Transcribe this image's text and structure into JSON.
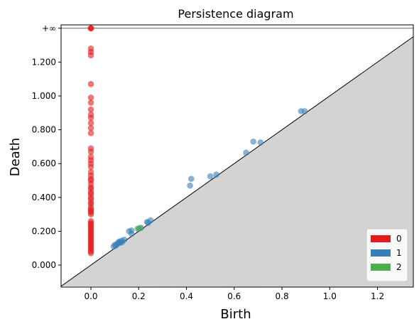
{
  "chart_data": {
    "type": "scatter",
    "title": "Persistence diagram",
    "xlabel": "Birth",
    "ylabel": "Death",
    "xlim": [
      -0.125,
      1.35
    ],
    "ylim": [
      -0.13,
      1.42
    ],
    "inf_value": 1.4,
    "inf_label": "+∞",
    "grid": false,
    "legend_position": "lower-right",
    "x_ticks": [
      0.0,
      0.2,
      0.4,
      0.6,
      0.8,
      1.0,
      1.2
    ],
    "x_tick_labels": [
      "0.0",
      "0.2",
      "0.4",
      "0.6",
      "0.8",
      "1.0",
      "1.2"
    ],
    "y_ticks": [
      0.0,
      0.2,
      0.4,
      0.6,
      0.8,
      1.0,
      1.2
    ],
    "y_tick_labels": [
      "0.000",
      "0.200",
      "0.400",
      "0.600",
      "0.800",
      "1.000",
      "1.200"
    ],
    "series": [
      {
        "name": "0",
        "color": "#e41a1c",
        "points": [
          [
            0,
            1.4
          ],
          [
            0,
            1.4
          ],
          [
            0,
            1.4
          ],
          [
            0,
            1.28
          ],
          [
            0,
            1.26
          ],
          [
            0,
            1.24
          ],
          [
            0,
            1.07
          ],
          [
            0,
            0.99
          ],
          [
            0,
            0.96
          ],
          [
            0,
            0.92
          ],
          [
            0,
            0.89
          ],
          [
            0,
            0.87
          ],
          [
            0,
            0.84
          ],
          [
            0,
            0.81
          ],
          [
            0,
            0.78
          ],
          [
            0,
            0.69
          ],
          [
            0,
            0.67
          ],
          [
            0,
            0.64
          ],
          [
            0,
            0.62
          ],
          [
            0,
            0.6
          ],
          [
            0,
            0.58
          ],
          [
            0,
            0.55
          ],
          [
            0,
            0.53
          ],
          [
            0,
            0.51
          ],
          [
            0,
            0.5
          ],
          [
            0,
            0.48
          ],
          [
            0,
            0.46
          ],
          [
            0,
            0.45
          ],
          [
            0,
            0.43
          ],
          [
            0,
            0.42
          ],
          [
            0,
            0.4
          ],
          [
            0,
            0.39
          ],
          [
            0,
            0.37
          ],
          [
            0,
            0.36
          ],
          [
            0,
            0.34
          ],
          [
            0,
            0.33
          ],
          [
            0,
            0.32
          ],
          [
            0,
            0.31
          ],
          [
            0,
            0.3
          ],
          [
            0,
            0.26
          ],
          [
            0,
            0.25
          ],
          [
            0,
            0.24
          ],
          [
            0,
            0.23
          ],
          [
            0,
            0.22
          ],
          [
            0,
            0.21
          ],
          [
            0,
            0.2
          ],
          [
            0,
            0.19
          ],
          [
            0,
            0.18
          ],
          [
            0,
            0.17
          ],
          [
            0,
            0.16
          ],
          [
            0,
            0.15
          ],
          [
            0,
            0.14
          ],
          [
            0,
            0.13
          ],
          [
            0,
            0.12
          ],
          [
            0,
            0.11
          ],
          [
            0,
            0.1
          ],
          [
            0,
            0.09
          ],
          [
            0,
            0.08
          ],
          [
            0,
            0.07
          ]
        ]
      },
      {
        "name": "1",
        "color": "#377eb8",
        "points": [
          [
            0.88,
            0.91
          ],
          [
            0.895,
            0.91
          ],
          [
            0.68,
            0.73
          ],
          [
            0.71,
            0.725
          ],
          [
            0.65,
            0.665
          ],
          [
            0.42,
            0.51
          ],
          [
            0.415,
            0.47
          ],
          [
            0.5,
            0.525
          ],
          [
            0.525,
            0.535
          ],
          [
            0.25,
            0.265
          ],
          [
            0.24,
            0.25
          ],
          [
            0.235,
            0.255
          ],
          [
            0.21,
            0.22
          ],
          [
            0.2,
            0.215
          ],
          [
            0.17,
            0.205
          ],
          [
            0.16,
            0.2
          ],
          [
            0.17,
            0.185
          ],
          [
            0.14,
            0.15
          ],
          [
            0.13,
            0.145
          ],
          [
            0.12,
            0.13
          ],
          [
            0.115,
            0.135
          ],
          [
            0.11,
            0.125
          ],
          [
            0.1,
            0.12
          ],
          [
            0.095,
            0.11
          ],
          [
            0.105,
            0.115
          ],
          [
            0.12,
            0.14
          ],
          [
            0.13,
            0.135
          ]
        ]
      },
      {
        "name": "2",
        "color": "#4daf4a",
        "points": [
          [
            0.195,
            0.215
          ],
          [
            0.205,
            0.22
          ]
        ]
      }
    ]
  }
}
